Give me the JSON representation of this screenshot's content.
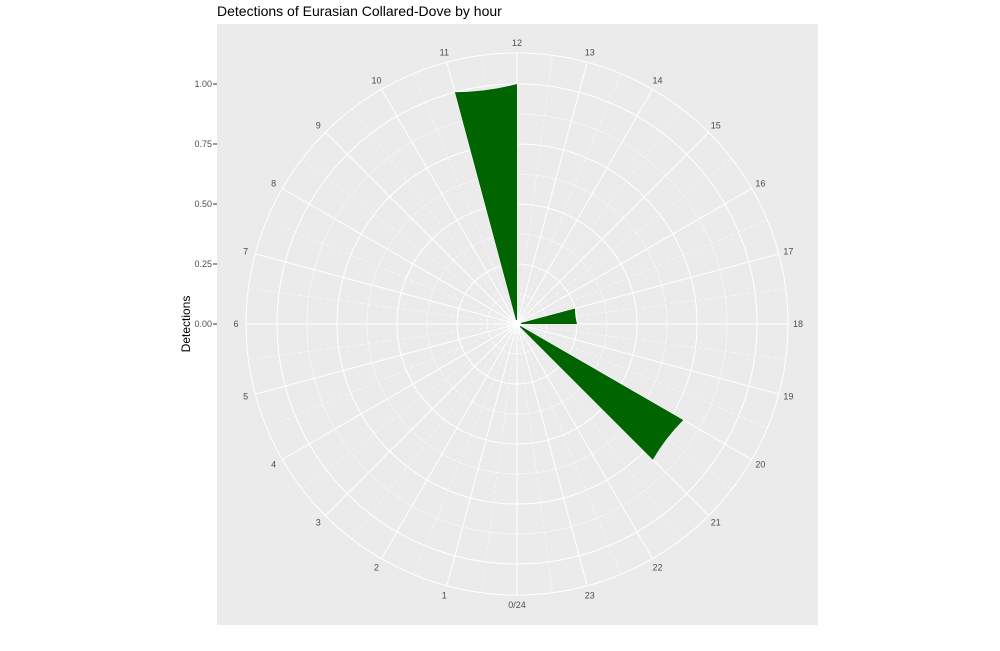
{
  "chart_data": {
    "type": "bar",
    "coord": "polar",
    "title": "Detections of Eurasian Collared-Dove by hour",
    "xlabel": "",
    "ylabel": "Detections",
    "categories": [
      0,
      1,
      2,
      3,
      4,
      5,
      6,
      7,
      8,
      9,
      10,
      11,
      12,
      13,
      14,
      15,
      16,
      17,
      18,
      19,
      20,
      21,
      22,
      23
    ],
    "values": [
      0,
      0,
      0,
      0,
      0,
      0,
      0,
      0,
      0,
      0,
      0,
      1,
      0,
      0,
      0,
      0,
      0,
      0.25,
      0,
      0,
      0.8,
      0,
      0,
      0
    ],
    "bars": [
      {
        "hour": 11,
        "value": 1.0
      },
      {
        "hour": 17,
        "value": 0.25
      },
      {
        "hour": 20,
        "value": 0.8
      }
    ],
    "hour_labels": [
      "0/24",
      "1",
      "2",
      "3",
      "4",
      "5",
      "6",
      "7",
      "8",
      "9",
      "10",
      "11",
      "12",
      "13",
      "14",
      "15",
      "16",
      "17",
      "18",
      "19",
      "20",
      "21",
      "22",
      "23"
    ],
    "y_ticks": [
      "0.00",
      "0.25",
      "0.50",
      "0.75",
      "1.00"
    ],
    "y_tick_values": [
      0,
      0.25,
      0.5,
      0.75,
      1.0
    ],
    "ylim": [
      0,
      1.0
    ],
    "bar_color": "#006400",
    "panel_color": "#ebebeb",
    "grid_color": "#ffffff",
    "grid": true,
    "legend": "none"
  }
}
